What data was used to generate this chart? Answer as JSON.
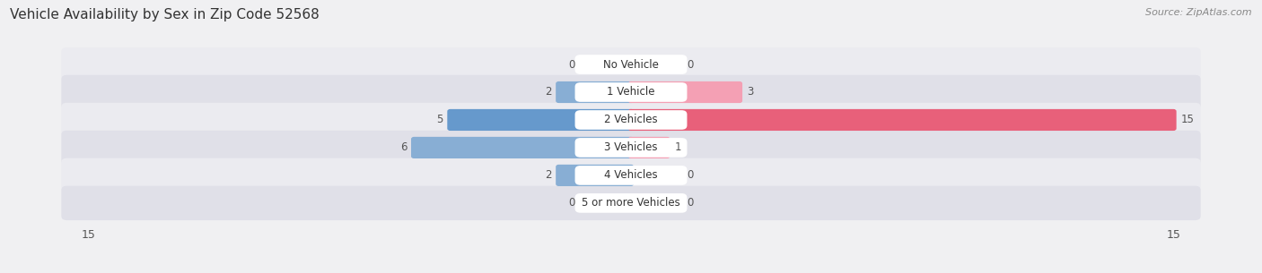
{
  "title": "Vehicle Availability by Sex in Zip Code 52568",
  "source": "Source: ZipAtlas.com",
  "categories": [
    "No Vehicle",
    "1 Vehicle",
    "2 Vehicles",
    "3 Vehicles",
    "4 Vehicles",
    "5 or more Vehicles"
  ],
  "male_values": [
    0,
    2,
    5,
    6,
    2,
    0
  ],
  "female_values": [
    0,
    3,
    15,
    1,
    0,
    0
  ],
  "male_color": "#88aed4",
  "female_color": "#f4a0b4",
  "male_color_2veh": "#6699cc",
  "female_color_2veh": "#ee6688",
  "label_color": "#555555",
  "bg_color": "#f0f0f2",
  "row_bg_light": "#e8e8ee",
  "row_bg_dark": "#dddde4",
  "xlim": 15,
  "title_fontsize": 11,
  "source_fontsize": 8,
  "label_fontsize": 8.5,
  "tick_fontsize": 9,
  "value_fontsize": 8.5
}
